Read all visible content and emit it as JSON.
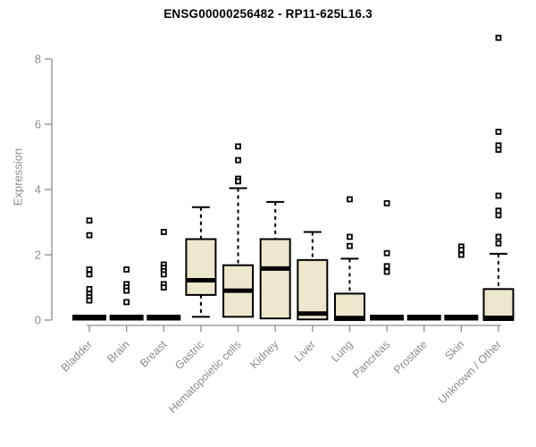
{
  "header": {
    "title": "ENSG00000256482 - RP11-625L16.3"
  },
  "colors": {
    "box_fill": "#EDE7CD",
    "box_stroke": "#000000",
    "axis": "#8c8c8c",
    "title": "#000000",
    "background": "#ffffff"
  },
  "chart_data": {
    "type": "boxplot",
    "title": "ENSG00000256482 - RP11-625L16.3",
    "xlabel": "",
    "ylabel": "Expression",
    "ylim": [
      0,
      8.8
    ],
    "yticks": [
      0,
      2,
      4,
      6,
      8
    ],
    "grid": false,
    "legend": "none",
    "categories": [
      "Bladder",
      "Brain",
      "Breast",
      "Gastric",
      "Hematopoietic cells",
      "Kidney",
      "Liver",
      "Lung",
      "Pancreas",
      "Prostate",
      "Skin",
      "Unknown / Other"
    ],
    "boxes": [
      {
        "category": "Bladder",
        "collapsed": true,
        "low": 0,
        "q1": 0,
        "median": 0,
        "q3": 0,
        "high": 0,
        "outliers": [
          3.05,
          2.6,
          1.55,
          1.4,
          0.95,
          0.8,
          0.7,
          0.6
        ]
      },
      {
        "category": "Brain",
        "collapsed": true,
        "low": 0,
        "q1": 0,
        "median": 0,
        "q3": 0,
        "high": 0,
        "outliers": [
          1.55,
          1.1,
          1.0,
          0.9,
          0.55
        ]
      },
      {
        "category": "Breast",
        "collapsed": true,
        "low": 0,
        "q1": 0,
        "median": 0,
        "q3": 0,
        "high": 0,
        "outliers": [
          2.7,
          1.7,
          1.6,
          1.5,
          1.4,
          1.1,
          1.0
        ]
      },
      {
        "category": "Gastric",
        "collapsed": false,
        "low": 0.1,
        "q1": 0.77,
        "median": 1.22,
        "q3": 2.48,
        "high": 3.46,
        "outliers": []
      },
      {
        "category": "Hematopoietic cells",
        "collapsed": false,
        "low": 0.1,
        "q1": 0.1,
        "median": 0.9,
        "q3": 1.68,
        "high": 4.04,
        "outliers": [
          5.32,
          4.9,
          4.33,
          4.25
        ]
      },
      {
        "category": "Kidney",
        "collapsed": false,
        "low": 0.05,
        "q1": 0.05,
        "median": 1.58,
        "q3": 2.48,
        "high": 3.62,
        "outliers": []
      },
      {
        "category": "Liver",
        "collapsed": false,
        "low": 0.02,
        "q1": 0.02,
        "median": 0.2,
        "q3": 1.84,
        "high": 2.7,
        "outliers": []
      },
      {
        "category": "Lung",
        "collapsed": false,
        "low": 0.0,
        "q1": 0.0,
        "median": 0.06,
        "q3": 0.81,
        "high": 1.88,
        "outliers": [
          3.7,
          2.55,
          2.27
        ]
      },
      {
        "category": "Pancreas",
        "collapsed": true,
        "low": 0,
        "q1": 0,
        "median": 0,
        "q3": 0,
        "high": 0,
        "outliers": [
          3.58,
          2.05,
          1.65,
          1.48
        ]
      },
      {
        "category": "Prostate",
        "collapsed": true,
        "low": 0,
        "q1": 0,
        "median": 0,
        "q3": 0,
        "high": 0,
        "outliers": []
      },
      {
        "category": "Skin",
        "collapsed": true,
        "low": 0,
        "q1": 0,
        "median": 0,
        "q3": 0,
        "high": 0,
        "outliers": [
          2.25,
          2.15,
          2.0
        ]
      },
      {
        "category": "Unknown / Other",
        "collapsed": false,
        "low": 0.0,
        "q1": 0.0,
        "median": 0.07,
        "q3": 0.95,
        "high": 2.03,
        "outliers": [
          8.65,
          5.77,
          5.35,
          5.22,
          3.81,
          3.35,
          3.21,
          2.55,
          2.35
        ]
      }
    ]
  }
}
